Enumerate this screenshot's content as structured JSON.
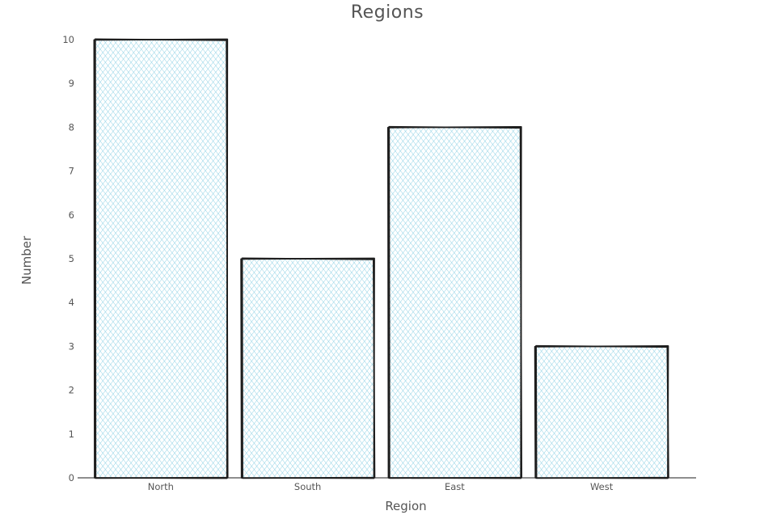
{
  "chart_data": {
    "type": "bar",
    "title": "Regions",
    "xlabel": "Region",
    "ylabel": "Number",
    "categories": [
      "North",
      "South",
      "East",
      "West"
    ],
    "values": [
      10,
      5,
      8,
      3
    ],
    "ylim": [
      0,
      10
    ],
    "yticks": [
      "0",
      "1",
      "2",
      "3",
      "4",
      "5",
      "6",
      "7",
      "8",
      "9",
      "10"
    ],
    "grid": false,
    "legend": "none",
    "style": "hand-drawn",
    "colors": {
      "bar_fill": "#87cee4",
      "outline": "#1e1e1e",
      "text": "#555555"
    }
  }
}
